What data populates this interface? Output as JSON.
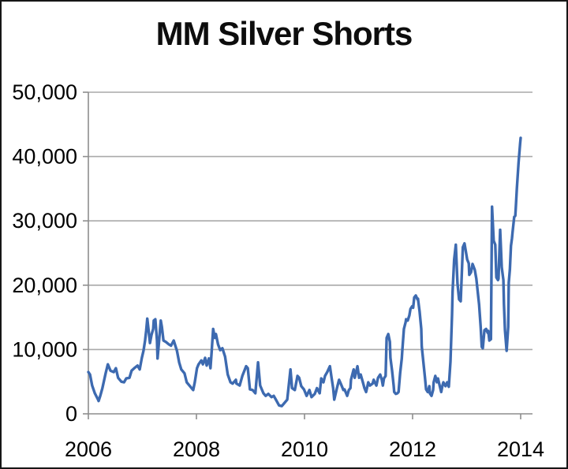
{
  "chart_data": {
    "type": "line",
    "title": "MM Silver Shorts",
    "xlabel": "",
    "ylabel": "",
    "legend": "none",
    "grid": "horizontal",
    "xlim": [
      2006,
      2014.22
    ],
    "ylim": [
      0,
      50000
    ],
    "x_ticks": {
      "labels": [
        "2006",
        "2008",
        "2010",
        "2012",
        "2014"
      ],
      "values": [
        2006,
        2008,
        2010,
        2012,
        2014
      ]
    },
    "y_ticks": {
      "labels": [
        "0",
        "10,000",
        "20,000",
        "30,000",
        "40,000",
        "50,000"
      ],
      "values": [
        0,
        10000,
        20000,
        30000,
        40000,
        50000
      ]
    },
    "colors": {
      "line": "#3D6AB0",
      "grid": "#A9A9A9",
      "axis": "#8E8E8E",
      "text": "#000000",
      "background": "#FFFFFF",
      "frame_border": "#161616"
    },
    "series": [
      {
        "name": "MM Silver Shorts",
        "points": [
          [
            2006.0,
            6500
          ],
          [
            2006.03,
            6100
          ],
          [
            2006.07,
            4400
          ],
          [
            2006.12,
            3200
          ],
          [
            2006.18,
            2200
          ],
          [
            2006.19,
            2000
          ],
          [
            2006.22,
            2800
          ],
          [
            2006.26,
            4000
          ],
          [
            2006.32,
            6300
          ],
          [
            2006.36,
            7700
          ],
          [
            2006.41,
            6700
          ],
          [
            2006.47,
            6500
          ],
          [
            2006.51,
            7100
          ],
          [
            2006.55,
            5600
          ],
          [
            2006.61,
            5000
          ],
          [
            2006.66,
            4900
          ],
          [
            2006.7,
            5500
          ],
          [
            2006.76,
            5600
          ],
          [
            2006.8,
            6700
          ],
          [
            2006.85,
            7100
          ],
          [
            2006.91,
            7500
          ],
          [
            2006.95,
            6900
          ],
          [
            2006.99,
            8700
          ],
          [
            2007.02,
            9800
          ],
          [
            2007.05,
            11400
          ],
          [
            2007.07,
            12900
          ],
          [
            2007.09,
            14800
          ],
          [
            2007.12,
            12600
          ],
          [
            2007.14,
            11000
          ],
          [
            2007.17,
            12300
          ],
          [
            2007.2,
            13200
          ],
          [
            2007.21,
            14500
          ],
          [
            2007.24,
            14700
          ],
          [
            2007.27,
            11400
          ],
          [
            2007.28,
            8600
          ],
          [
            2007.31,
            11400
          ],
          [
            2007.34,
            14500
          ],
          [
            2007.36,
            13500
          ],
          [
            2007.39,
            11400
          ],
          [
            2007.43,
            11200
          ],
          [
            2007.49,
            10800
          ],
          [
            2007.53,
            10600
          ],
          [
            2007.58,
            11400
          ],
          [
            2007.64,
            9800
          ],
          [
            2007.68,
            8000
          ],
          [
            2007.72,
            6900
          ],
          [
            2007.78,
            6300
          ],
          [
            2007.82,
            4900
          ],
          [
            2007.87,
            4400
          ],
          [
            2007.93,
            3800
          ],
          [
            2007.94,
            3700
          ],
          [
            2007.97,
            4900
          ],
          [
            2008.01,
            7100
          ],
          [
            2008.04,
            7700
          ],
          [
            2008.09,
            8300
          ],
          [
            2008.12,
            7700
          ],
          [
            2008.16,
            8700
          ],
          [
            2008.19,
            7500
          ],
          [
            2008.23,
            8600
          ],
          [
            2008.26,
            7100
          ],
          [
            2008.28,
            9500
          ],
          [
            2008.31,
            13200
          ],
          [
            2008.34,
            11800
          ],
          [
            2008.36,
            12400
          ],
          [
            2008.4,
            10800
          ],
          [
            2008.44,
            9900
          ],
          [
            2008.48,
            10200
          ],
          [
            2008.53,
            8900
          ],
          [
            2008.58,
            6100
          ],
          [
            2008.63,
            4900
          ],
          [
            2008.67,
            4700
          ],
          [
            2008.73,
            5300
          ],
          [
            2008.74,
            4700
          ],
          [
            2008.8,
            4400
          ],
          [
            2008.85,
            5900
          ],
          [
            2008.92,
            7400
          ],
          [
            2008.95,
            7100
          ],
          [
            2008.99,
            3800
          ],
          [
            2009.04,
            3700
          ],
          [
            2009.09,
            3200
          ],
          [
            2009.14,
            8000
          ],
          [
            2009.18,
            4400
          ],
          [
            2009.24,
            3200
          ],
          [
            2009.28,
            2800
          ],
          [
            2009.33,
            3100
          ],
          [
            2009.39,
            2600
          ],
          [
            2009.43,
            2800
          ],
          [
            2009.47,
            2200
          ],
          [
            2009.53,
            1300
          ],
          [
            2009.58,
            1200
          ],
          [
            2009.62,
            1600
          ],
          [
            2009.68,
            2200
          ],
          [
            2009.74,
            6900
          ],
          [
            2009.77,
            4000
          ],
          [
            2009.82,
            3700
          ],
          [
            2009.87,
            5900
          ],
          [
            2009.9,
            5600
          ],
          [
            2009.94,
            4300
          ],
          [
            2009.99,
            3800
          ],
          [
            2010.04,
            2800
          ],
          [
            2010.09,
            3700
          ],
          [
            2010.13,
            2600
          ],
          [
            2010.19,
            3100
          ],
          [
            2010.23,
            4000
          ],
          [
            2010.28,
            3200
          ],
          [
            2010.31,
            5500
          ],
          [
            2010.35,
            4900
          ],
          [
            2010.38,
            5900
          ],
          [
            2010.42,
            6500
          ],
          [
            2010.47,
            7400
          ],
          [
            2010.5,
            5600
          ],
          [
            2010.53,
            4000
          ],
          [
            2010.55,
            2200
          ],
          [
            2010.6,
            4000
          ],
          [
            2010.64,
            5300
          ],
          [
            2010.67,
            4700
          ],
          [
            2010.72,
            3700
          ],
          [
            2010.74,
            3800
          ],
          [
            2010.79,
            2800
          ],
          [
            2010.82,
            3700
          ],
          [
            2010.85,
            4000
          ],
          [
            2010.86,
            5300
          ],
          [
            2010.91,
            6900
          ],
          [
            2010.93,
            5600
          ],
          [
            2010.98,
            7400
          ],
          [
            2011.01,
            5600
          ],
          [
            2011.04,
            6100
          ],
          [
            2011.08,
            4900
          ],
          [
            2011.11,
            4000
          ],
          [
            2011.14,
            3400
          ],
          [
            2011.18,
            4900
          ],
          [
            2011.21,
            4400
          ],
          [
            2011.26,
            4700
          ],
          [
            2011.28,
            5300
          ],
          [
            2011.3,
            4900
          ],
          [
            2011.33,
            4400
          ],
          [
            2011.36,
            5600
          ],
          [
            2011.4,
            6100
          ],
          [
            2011.43,
            5300
          ],
          [
            2011.45,
            4400
          ],
          [
            2011.47,
            5500
          ],
          [
            2011.5,
            5900
          ],
          [
            2011.52,
            11800
          ],
          [
            2011.55,
            12400
          ],
          [
            2011.58,
            11200
          ],
          [
            2011.59,
            8700
          ],
          [
            2011.62,
            6700
          ],
          [
            2011.65,
            4400
          ],
          [
            2011.66,
            3400
          ],
          [
            2011.69,
            3100
          ],
          [
            2011.72,
            3200
          ],
          [
            2011.74,
            3400
          ],
          [
            2011.77,
            6300
          ],
          [
            2011.8,
            8600
          ],
          [
            2011.81,
            9900
          ],
          [
            2011.84,
            13200
          ],
          [
            2011.87,
            14200
          ],
          [
            2011.88,
            14700
          ],
          [
            2011.91,
            14500
          ],
          [
            2011.94,
            15300
          ],
          [
            2011.96,
            16300
          ],
          [
            2011.99,
            16700
          ],
          [
            2012.01,
            16500
          ],
          [
            2012.03,
            18100
          ],
          [
            2012.06,
            18400
          ],
          [
            2012.09,
            17800
          ],
          [
            2012.1,
            17900
          ],
          [
            2012.13,
            15900
          ],
          [
            2012.16,
            13200
          ],
          [
            2012.17,
            10500
          ],
          [
            2012.2,
            8000
          ],
          [
            2012.23,
            5500
          ],
          [
            2012.25,
            3800
          ],
          [
            2012.28,
            3400
          ],
          [
            2012.31,
            4300
          ],
          [
            2012.32,
            3200
          ],
          [
            2012.35,
            2800
          ],
          [
            2012.38,
            3700
          ],
          [
            2012.39,
            4900
          ],
          [
            2012.42,
            5900
          ],
          [
            2012.45,
            4900
          ],
          [
            2012.47,
            5500
          ],
          [
            2012.5,
            4400
          ],
          [
            2012.53,
            3400
          ],
          [
            2012.55,
            4300
          ],
          [
            2012.57,
            4900
          ],
          [
            2012.61,
            4300
          ],
          [
            2012.64,
            4900
          ],
          [
            2012.67,
            4200
          ],
          [
            2012.7,
            8100
          ],
          [
            2012.73,
            15400
          ],
          [
            2012.74,
            19000
          ],
          [
            2012.77,
            24000
          ],
          [
            2012.8,
            26300
          ],
          [
            2012.83,
            20300
          ],
          [
            2012.86,
            17800
          ],
          [
            2012.89,
            17500
          ],
          [
            2012.93,
            25900
          ],
          [
            2012.96,
            26500
          ],
          [
            2013.01,
            24000
          ],
          [
            2013.04,
            23400
          ],
          [
            2013.05,
            21600
          ],
          [
            2013.08,
            22000
          ],
          [
            2013.11,
            23300
          ],
          [
            2013.15,
            22400
          ],
          [
            2013.18,
            21000
          ],
          [
            2013.23,
            17000
          ],
          [
            2013.26,
            13500
          ],
          [
            2013.28,
            10400
          ],
          [
            2013.3,
            10200
          ],
          [
            2013.33,
            13000
          ],
          [
            2013.36,
            13200
          ],
          [
            2013.39,
            12600
          ],
          [
            2013.4,
            12900
          ],
          [
            2013.42,
            11400
          ],
          [
            2013.45,
            11600
          ],
          [
            2013.47,
            32200
          ],
          [
            2013.5,
            26900
          ],
          [
            2013.53,
            26300
          ],
          [
            2013.55,
            21200
          ],
          [
            2013.58,
            20800
          ],
          [
            2013.59,
            21000
          ],
          [
            2013.62,
            28600
          ],
          [
            2013.65,
            22800
          ],
          [
            2013.68,
            20800
          ],
          [
            2013.69,
            17100
          ],
          [
            2013.71,
            13000
          ],
          [
            2013.74,
            9800
          ],
          [
            2013.77,
            13500
          ],
          [
            2013.78,
            20400
          ],
          [
            2013.8,
            22400
          ],
          [
            2013.82,
            26100
          ],
          [
            2013.84,
            27300
          ],
          [
            2013.85,
            28200
          ],
          [
            2013.88,
            30600
          ],
          [
            2013.9,
            30800
          ],
          [
            2013.91,
            32000
          ],
          [
            2013.93,
            35100
          ],
          [
            2013.96,
            39000
          ],
          [
            2013.99,
            42000
          ],
          [
            2014.0,
            42900
          ]
        ]
      }
    ]
  }
}
